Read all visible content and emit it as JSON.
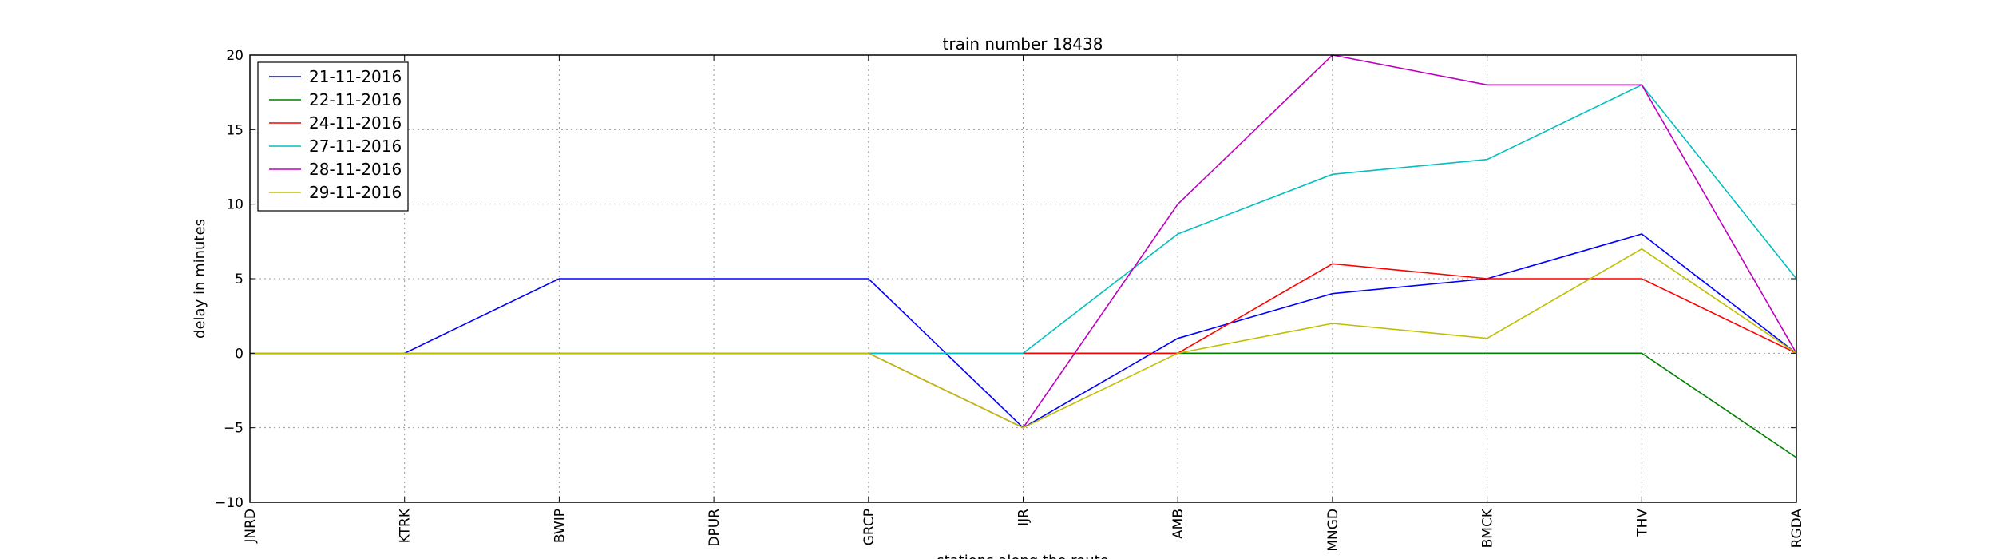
{
  "chart_data": {
    "type": "line",
    "title": "train number 18438",
    "xlabel": "stations along the route",
    "ylabel": "delay in minutes",
    "categories": [
      "JNRD",
      "KTRK",
      "BWIP",
      "DPUR",
      "GRCP",
      "IJR",
      "AMB",
      "MNGD",
      "BMCK",
      "THV",
      "RGDA"
    ],
    "ylim": [
      -10,
      20
    ],
    "yticks": [
      -10,
      -5,
      0,
      5,
      10,
      15,
      20
    ],
    "ytick_labels": [
      "−10",
      "−5",
      "0",
      "5",
      "10",
      "15",
      "20"
    ],
    "grid": true,
    "legend_position": "top-left",
    "series": [
      {
        "name": "21-11-2016",
        "color": "#0000ff",
        "values": [
          0,
          0,
          5,
          5,
          5,
          -5,
          1,
          4,
          5,
          8,
          0
        ]
      },
      {
        "name": "22-11-2016",
        "color": "#008000",
        "values": [
          0,
          0,
          0,
          0,
          0,
          0,
          0,
          0,
          0,
          0,
          -7
        ]
      },
      {
        "name": "24-11-2016",
        "color": "#ff0000",
        "values": [
          0,
          0,
          0,
          0,
          0,
          0,
          0,
          6,
          5,
          5,
          0
        ]
      },
      {
        "name": "27-11-2016",
        "color": "#00bfbf",
        "values": [
          0,
          0,
          0,
          0,
          0,
          0,
          8,
          12,
          13,
          18,
          5
        ]
      },
      {
        "name": "28-11-2016",
        "color": "#bf00bf",
        "values": [
          0,
          0,
          0,
          0,
          0,
          -5,
          10,
          20,
          18,
          18,
          0
        ]
      },
      {
        "name": "29-11-2016",
        "color": "#bfbf00",
        "values": [
          0,
          0,
          0,
          0,
          0,
          -5,
          0,
          2,
          1,
          7,
          0
        ]
      }
    ]
  }
}
